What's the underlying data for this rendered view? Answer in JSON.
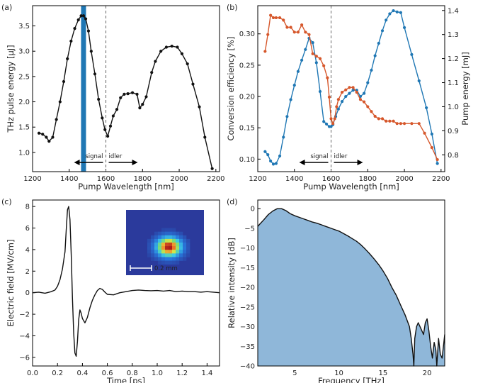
{
  "colors": {
    "black": "#111111",
    "blue": "#1f77b4",
    "orange": "#d6572b",
    "fill": "#8fb7d9"
  },
  "chart_data": [
    {
      "id": "a",
      "panel_label": "(a)",
      "type": "line",
      "xlabel": "Pump Wavelength [nm]",
      "ylabel": "THz pulse energy [μJ]",
      "xlim": [
        1200,
        2220
      ],
      "ylim": [
        0.62,
        3.9
      ],
      "xticks": [
        1200,
        1400,
        1600,
        1800,
        2000,
        2200
      ],
      "yticks": [
        1.0,
        1.5,
        2.0,
        2.5,
        3.0,
        3.5
      ],
      "series": [
        {
          "color": "#111111",
          "x": [
            1235,
            1255,
            1275,
            1290,
            1310,
            1330,
            1350,
            1370,
            1390,
            1410,
            1430,
            1450,
            1465,
            1478,
            1490,
            1505,
            1520,
            1540,
            1560,
            1580,
            1595,
            1610,
            1625,
            1640,
            1660,
            1680,
            1700,
            1720,
            1745,
            1770,
            1785,
            1800,
            1820,
            1850,
            1870,
            1900,
            1930,
            1960,
            1990,
            2015,
            2045,
            2075,
            2110,
            2140,
            2180
          ],
          "y": [
            1.38,
            1.36,
            1.3,
            1.22,
            1.3,
            1.65,
            2.0,
            2.4,
            2.85,
            3.2,
            3.45,
            3.62,
            3.7,
            3.7,
            3.64,
            3.4,
            3.0,
            2.55,
            2.05,
            1.68,
            1.45,
            1.32,
            1.52,
            1.72,
            1.85,
            2.08,
            2.15,
            2.16,
            2.18,
            2.15,
            1.88,
            1.95,
            2.1,
            2.58,
            2.8,
            3.0,
            3.08,
            3.1,
            3.08,
            2.95,
            2.75,
            2.35,
            1.9,
            1.3,
            0.68
          ]
        }
      ],
      "highlight_x": 1478,
      "dashed_x": 1600,
      "signal_label": "signal",
      "idler_label": "idler"
    },
    {
      "id": "b",
      "panel_label": "(b)",
      "type": "line",
      "xlabel": "Pump Wavelength [nm]",
      "ylabel": "Conversion efficiency [%]",
      "ylabel2": "Pump energy [mJ]",
      "xlim": [
        1200,
        2220
      ],
      "ylim": [
        0.08,
        0.345
      ],
      "ylim2": [
        0.73,
        1.42
      ],
      "xticks": [
        1200,
        1400,
        1600,
        1800,
        2000,
        2200
      ],
      "yticks": [
        0.1,
        0.15,
        0.2,
        0.25,
        0.3
      ],
      "yticks2": [
        0.8,
        0.9,
        1.0,
        1.1,
        1.2,
        1.3,
        1.4
      ],
      "series": [
        {
          "axis": "left",
          "color": "#1f77b4",
          "x": [
            1240,
            1255,
            1270,
            1285,
            1300,
            1320,
            1340,
            1360,
            1380,
            1400,
            1420,
            1440,
            1460,
            1480,
            1500,
            1520,
            1540,
            1560,
            1575,
            1590,
            1600,
            1610,
            1625,
            1640,
            1660,
            1680,
            1700,
            1720,
            1740,
            1760,
            1780,
            1800,
            1820,
            1840,
            1860,
            1880,
            1900,
            1920,
            1940,
            1960,
            1980,
            2000,
            2040,
            2080,
            2120,
            2150,
            2180
          ],
          "y": [
            0.112,
            0.107,
            0.097,
            0.092,
            0.093,
            0.105,
            0.135,
            0.168,
            0.195,
            0.218,
            0.24,
            0.258,
            0.275,
            0.293,
            0.286,
            0.254,
            0.208,
            0.16,
            0.156,
            0.152,
            0.152,
            0.155,
            0.168,
            0.18,
            0.192,
            0.2,
            0.205,
            0.21,
            0.21,
            0.2,
            0.205,
            0.222,
            0.242,
            0.265,
            0.285,
            0.305,
            0.322,
            0.332,
            0.337,
            0.335,
            0.334,
            0.31,
            0.267,
            0.225,
            0.182,
            0.14,
            0.093
          ]
        },
        {
          "axis": "right",
          "color": "#d6572b",
          "x": [
            1240,
            1255,
            1270,
            1285,
            1300,
            1320,
            1340,
            1360,
            1380,
            1400,
            1420,
            1440,
            1460,
            1480,
            1500,
            1520,
            1540,
            1560,
            1580,
            1590,
            1600,
            1610,
            1620,
            1630,
            1640,
            1660,
            1680,
            1700,
            1720,
            1740,
            1760,
            1780,
            1800,
            1820,
            1840,
            1860,
            1880,
            1900,
            1920,
            1940,
            1960,
            1980,
            2000,
            2040,
            2080,
            2110,
            2150,
            2180
          ],
          "y": [
            1.23,
            1.3,
            1.38,
            1.37,
            1.37,
            1.37,
            1.36,
            1.33,
            1.33,
            1.31,
            1.31,
            1.34,
            1.31,
            1.3,
            1.22,
            1.21,
            1.2,
            1.17,
            1.12,
            1.04,
            0.95,
            0.93,
            0.95,
            1.0,
            1.03,
            1.06,
            1.07,
            1.08,
            1.08,
            1.06,
            1.03,
            1.02,
            1.0,
            0.98,
            0.96,
            0.95,
            0.95,
            0.94,
            0.94,
            0.94,
            0.93,
            0.93,
            0.93,
            0.93,
            0.93,
            0.89,
            0.83,
            0.78
          ]
        }
      ],
      "dashed_x": 1600,
      "signal_label": "signal",
      "idler_label": "idler"
    },
    {
      "id": "c",
      "panel_label": "(c)",
      "type": "line",
      "xlabel": "Time [ps]",
      "ylabel": "Electric field [MV/cm]",
      "xlim": [
        0.0,
        1.5
      ],
      "ylim": [
        -6.8,
        8.6
      ],
      "xticks": [
        0.0,
        0.2,
        0.4,
        0.6,
        0.8,
        1.0,
        1.2,
        1.4
      ],
      "yticks": [
        -6,
        -4,
        -2,
        0,
        2,
        4,
        6,
        8
      ],
      "series": [
        {
          "color": "#111111",
          "t": [
            0,
            0.05,
            0.1,
            0.15,
            0.18,
            0.2,
            0.22,
            0.24,
            0.26,
            0.27,
            0.28,
            0.29,
            0.3,
            0.31,
            0.32,
            0.33,
            0.34,
            0.35,
            0.36,
            0.37,
            0.38,
            0.39,
            0.4,
            0.42,
            0.44,
            0.46,
            0.48,
            0.5,
            0.52,
            0.54,
            0.56,
            0.58,
            0.6,
            0.65,
            0.7,
            0.75,
            0.8,
            0.85,
            0.9,
            0.95,
            1.0,
            1.05,
            1.1,
            1.15,
            1.2,
            1.25,
            1.3,
            1.35,
            1.4,
            1.45,
            1.5
          ],
          "y": [
            0,
            0.05,
            -0.05,
            0.1,
            0.25,
            0.6,
            1.2,
            2.2,
            3.8,
            5.8,
            7.7,
            8.0,
            6.8,
            3.5,
            -0.5,
            -3.8,
            -5.6,
            -5.9,
            -4.5,
            -2.5,
            -1.6,
            -1.9,
            -2.4,
            -2.8,
            -2.3,
            -1.4,
            -0.7,
            -0.2,
            0.2,
            0.4,
            0.3,
            0.05,
            -0.15,
            -0.2,
            0.0,
            0.1,
            0.2,
            0.25,
            0.2,
            0.18,
            0.2,
            0.15,
            0.2,
            0.1,
            0.15,
            0.1,
            0.1,
            0.05,
            0.1,
            0.05,
            0.0
          ]
        }
      ],
      "inset_scalebar_label": "0.2 mm"
    },
    {
      "id": "d",
      "panel_label": "(d)",
      "type": "area",
      "xlabel": "Frequency [THz]",
      "ylabel": "Relative intensity [dB]",
      "xlim": [
        0.8,
        22.0
      ],
      "ylim": [
        -40,
        2.2
      ],
      "xticks": [
        5,
        10,
        15,
        20
      ],
      "yticks": [
        0,
        -5,
        -10,
        -15,
        -20,
        -25,
        -30,
        -35,
        -40
      ],
      "series": [
        {
          "color": "#111111",
          "fill": "#8fb7d9",
          "f": [
            0.8,
            1.0,
            1.5,
            2.0,
            2.5,
            3.0,
            3.5,
            4.0,
            4.5,
            5.0,
            5.5,
            6.0,
            6.5,
            7.0,
            7.5,
            8.0,
            8.5,
            9.0,
            9.5,
            10.0,
            10.5,
            11.0,
            11.5,
            12.0,
            12.5,
            13.0,
            13.5,
            14.0,
            14.5,
            15.0,
            15.5,
            16.0,
            16.5,
            17.0,
            17.5,
            18.0,
            18.2,
            18.4,
            18.5,
            18.6,
            18.8,
            19.0,
            19.3,
            19.6,
            19.8,
            20.0,
            20.2,
            20.4,
            20.6,
            20.8,
            21.0,
            21.1,
            21.3,
            21.5,
            21.7,
            21.9,
            22.0
          ],
          "db": [
            -4.5,
            -4.0,
            -2.8,
            -1.5,
            -0.6,
            0.0,
            0.0,
            -0.5,
            -1.3,
            -1.8,
            -2.2,
            -2.6,
            -3.0,
            -3.4,
            -3.7,
            -4.1,
            -4.5,
            -4.9,
            -5.3,
            -5.7,
            -6.3,
            -6.9,
            -7.6,
            -8.3,
            -9.2,
            -10.3,
            -11.5,
            -12.8,
            -14.2,
            -15.8,
            -17.7,
            -20.0,
            -22.0,
            -24.5,
            -27.0,
            -30.0,
            -33.0,
            -37.0,
            -40.0,
            -33.0,
            -30.0,
            -29.0,
            -30.5,
            -32.0,
            -29.0,
            -28.0,
            -31.0,
            -35.0,
            -38.0,
            -34.0,
            -36.0,
            -40.0,
            -33.0,
            -37.0,
            -38.0,
            -34.0,
            -32.0
          ]
        }
      ]
    }
  ]
}
